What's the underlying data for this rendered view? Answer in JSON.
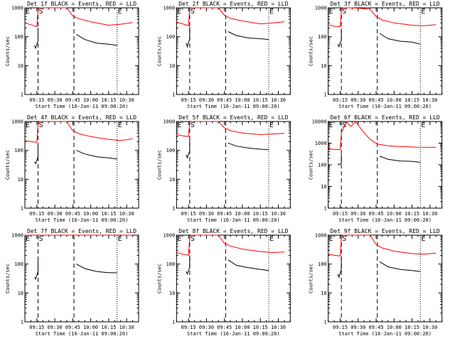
{
  "chart_data": [
    {
      "type": "line",
      "title": "Det 1f BLACK = Events, RED = LLD",
      "xlabel": "Start Time (16-Jan-11 09:00:20)",
      "ylabel": "Counts/sec",
      "xlim": [
        "09:05",
        "10:40"
      ],
      "xticks": [
        "09:15",
        "09:30",
        "09:45",
        "10:00",
        "10:15",
        "10:30"
      ],
      "ylim": [
        1,
        1000
      ],
      "yscale": "log",
      "yticks": [
        "1",
        "10",
        "100",
        "1000"
      ],
      "grid": false,
      "markers": [
        {
          "label": "E",
          "time": "09:05"
        },
        {
          "label": "S",
          "time": "09:16"
        },
        {
          "label": "E",
          "time": "10:22"
        }
      ],
      "vlines": [
        {
          "time": "09:16",
          "style": "dashed"
        },
        {
          "time": "09:46",
          "style": "dashed"
        },
        {
          "time": "10:22",
          "style": "dotted"
        }
      ],
      "series": [
        {
          "color": "#ff0000",
          "x": [
            "09:05",
            "09:10",
            "09:15",
            "09:16",
            "09:17",
            "09:25",
            "09:40",
            "09:45",
            "09:50",
            "10:00",
            "10:15",
            "10:25",
            "10:35"
          ],
          "y": [
            300,
            260,
            220,
            850,
            1000,
            1000,
            1000,
            520,
            420,
            330,
            250,
            270,
            310
          ]
        },
        {
          "color": "#000000",
          "x": [
            "09:13",
            "09:14",
            "09:15",
            "09:16",
            "09:16",
            "09:47",
            "09:48",
            "09:55",
            "10:05",
            "10:15",
            "10:22"
          ],
          "y": [
            50,
            40,
            55,
            70,
            200,
            null,
            120,
            80,
            60,
            55,
            50
          ]
        }
      ]
    },
    {
      "type": "line",
      "title": "Det 2f BLACK = Events, RED = LLD",
      "xlabel": "Start Time (16-Jan-11 09:00:20)",
      "ylabel": "Counts/sec",
      "xlim": [
        "09:05",
        "10:40"
      ],
      "xticks": [
        "09:15",
        "09:30",
        "09:45",
        "10:00",
        "10:15",
        "10:30"
      ],
      "ylim": [
        1,
        1000
      ],
      "yscale": "log",
      "yticks": [
        "1",
        "10",
        "100",
        "1000"
      ],
      "grid": false,
      "markers": [
        {
          "label": "E",
          "time": "09:05"
        },
        {
          "label": "S",
          "time": "09:16"
        },
        {
          "label": "E",
          "time": "10:22"
        }
      ],
      "vlines": [
        {
          "time": "09:16",
          "style": "dashed"
        },
        {
          "time": "09:46",
          "style": "dashed"
        },
        {
          "time": "10:22",
          "style": "dotted"
        }
      ],
      "series": [
        {
          "color": "#ff0000",
          "x": [
            "09:05",
            "09:10",
            "09:15",
            "09:16",
            "09:17",
            "09:25",
            "09:40",
            "09:45",
            "09:50",
            "10:00",
            "10:15",
            "10:25",
            "10:35"
          ],
          "y": [
            320,
            280,
            240,
            900,
            1000,
            1000,
            1000,
            550,
            430,
            350,
            280,
            300,
            330
          ]
        },
        {
          "color": "#000000",
          "x": [
            "09:13",
            "09:14",
            "09:15",
            "09:16",
            "09:16",
            "09:47",
            "09:48",
            "09:55",
            "10:05",
            "10:15",
            "10:22"
          ],
          "y": [
            60,
            45,
            65,
            80,
            220,
            null,
            150,
            110,
            90,
            85,
            80
          ]
        }
      ]
    },
    {
      "type": "line",
      "title": "Det 3f BLACK = Events, RED = LLD",
      "xlabel": "Start Time (16-Jan-11 09:00:20)",
      "ylabel": "Counts/sec",
      "xlim": [
        "09:05",
        "10:40"
      ],
      "xticks": [
        "09:15",
        "09:30",
        "09:45",
        "10:00",
        "10:15",
        "10:30"
      ],
      "ylim": [
        1,
        1000
      ],
      "yscale": "log",
      "yticks": [
        "1",
        "10",
        "100",
        "1000"
      ],
      "grid": false,
      "markers": [
        {
          "label": "E",
          "time": "09:05"
        },
        {
          "label": "S",
          "time": "09:16"
        },
        {
          "label": "E",
          "time": "10:22"
        }
      ],
      "vlines": [
        {
          "time": "09:16",
          "style": "dashed"
        },
        {
          "time": "09:46",
          "style": "dashed"
        },
        {
          "time": "10:22",
          "style": "dotted"
        }
      ],
      "series": [
        {
          "color": "#ff0000",
          "x": [
            "09:05",
            "09:10",
            "09:15",
            "09:16",
            "09:17",
            "09:25",
            "09:40",
            "09:45",
            "09:50",
            "10:00",
            "10:15",
            "10:25",
            "10:35"
          ],
          "y": [
            260,
            230,
            220,
            800,
            1000,
            1000,
            900,
            500,
            380,
            300,
            250,
            240,
            260
          ]
        },
        {
          "color": "#000000",
          "x": [
            "09:13",
            "09:14",
            "09:15",
            "09:16",
            "09:16",
            "09:47",
            "09:48",
            "09:55",
            "10:05",
            "10:15",
            "10:22"
          ],
          "y": [
            55,
            45,
            60,
            75,
            190,
            null,
            130,
            85,
            70,
            65,
            55
          ]
        }
      ]
    },
    {
      "type": "line",
      "title": "Det 4f BLACK = Events, RED = LLD",
      "xlabel": "Start Time (16-Jan-11 09:00:20)",
      "ylabel": "Counts/sec",
      "xlim": [
        "09:05",
        "10:40"
      ],
      "xticks": [
        "09:15",
        "09:30",
        "09:45",
        "10:00",
        "10:15",
        "10:30"
      ],
      "ylim": [
        1,
        1000
      ],
      "yscale": "log",
      "yticks": [
        "1",
        "10",
        "100",
        "1000"
      ],
      "grid": false,
      "markers": [
        {
          "label": "E",
          "time": "09:05"
        },
        {
          "label": "S",
          "time": "09:16"
        },
        {
          "label": "E",
          "time": "10:22"
        }
      ],
      "vlines": [
        {
          "time": "09:16",
          "style": "dashed"
        },
        {
          "time": "09:46",
          "style": "dashed"
        },
        {
          "time": "10:22",
          "style": "dotted"
        }
      ],
      "series": [
        {
          "color": "#ff0000",
          "x": [
            "09:05",
            "09:10",
            "09:15",
            "09:16",
            "09:17",
            "09:25",
            "09:40",
            "09:45",
            "09:50",
            "10:00",
            "10:15",
            "10:25",
            "10:35"
          ],
          "y": [
            220,
            200,
            190,
            800,
            1000,
            1000,
            1000,
            480,
            380,
            300,
            240,
            220,
            250
          ]
        },
        {
          "color": "#000000",
          "x": [
            "09:13",
            "09:14",
            "09:15",
            "09:16",
            "09:16",
            "09:47",
            "09:48",
            "09:55",
            "10:05",
            "10:15",
            "10:22"
          ],
          "y": [
            40,
            35,
            45,
            60,
            180,
            null,
            100,
            75,
            60,
            55,
            50
          ]
        }
      ]
    },
    {
      "type": "line",
      "title": "Det 5f BLACK = Events, RED = LLD",
      "xlabel": "Start Time (16-Jan-11 09:00:20)",
      "ylabel": "Counts/sec",
      "xlim": [
        "09:05",
        "10:40"
      ],
      "xticks": [
        "09:15",
        "09:30",
        "09:45",
        "10:00",
        "10:15",
        "10:30"
      ],
      "ylim": [
        1,
        1000
      ],
      "yscale": "log",
      "yticks": [
        "1",
        "10",
        "100",
        "1000"
      ],
      "grid": false,
      "markers": [
        {
          "label": "E",
          "time": "09:05"
        },
        {
          "label": "S",
          "time": "09:16"
        },
        {
          "label": "E",
          "time": "10:22"
        }
      ],
      "vlines": [
        {
          "time": "09:16",
          "style": "dashed"
        },
        {
          "time": "09:46",
          "style": "dashed"
        },
        {
          "time": "10:22",
          "style": "dotted"
        }
      ],
      "series": [
        {
          "color": "#ff0000",
          "x": [
            "09:05",
            "09:10",
            "09:15",
            "09:16",
            "09:17",
            "09:25",
            "09:40",
            "09:45",
            "09:50",
            "10:00",
            "10:15",
            "10:25",
            "10:35"
          ],
          "y": [
            350,
            320,
            300,
            950,
            1000,
            1000,
            1000,
            600,
            480,
            400,
            350,
            370,
            390
          ]
        },
        {
          "color": "#000000",
          "x": [
            "09:13",
            "09:14",
            "09:15",
            "09:16",
            "09:16",
            "09:47",
            "09:48",
            "09:55",
            "10:05",
            "10:15",
            "10:22"
          ],
          "y": [
            70,
            55,
            75,
            90,
            250,
            null,
            180,
            140,
            120,
            110,
            105
          ]
        }
      ]
    },
    {
      "type": "line",
      "title": "Det 6f BLACK = Events, RED = LLD",
      "xlabel": "Start Time (16-Jan-11 09:00:20)",
      "ylabel": "Counts/sec",
      "xlim": [
        "09:05",
        "10:40"
      ],
      "xticks": [
        "09:15",
        "09:30",
        "09:45",
        "10:00",
        "10:15",
        "10:30"
      ],
      "ylim": [
        1,
        10000
      ],
      "yscale": "log",
      "yticks": [
        "1",
        "10",
        "100",
        "1000",
        "10000"
      ],
      "grid": false,
      "markers": [
        {
          "label": "E",
          "time": "09:05"
        },
        {
          "label": "S",
          "time": "09:16"
        },
        {
          "label": "E",
          "time": "10:22"
        }
      ],
      "vlines": [
        {
          "time": "09:16",
          "style": "dashed"
        },
        {
          "time": "09:46",
          "style": "dashed"
        },
        {
          "time": "10:22",
          "style": "dotted"
        }
      ],
      "series": [
        {
          "color": "#ff0000",
          "x": [
            "09:05",
            "09:10",
            "09:15",
            "09:16",
            "09:20",
            "09:24",
            "09:28",
            "09:34",
            "09:40",
            "09:46",
            "09:55",
            "10:05",
            "10:20",
            "10:35"
          ],
          "y": [
            550,
            520,
            500,
            3000,
            9500,
            6000,
            9800,
            3500,
            1500,
            900,
            750,
            700,
            650,
            640
          ]
        },
        {
          "color": "#000000",
          "x": [
            "09:13",
            "09:14",
            "09:15",
            "09:16",
            "09:16",
            "09:47",
            "09:48",
            "09:55",
            "10:05",
            "10:15",
            "10:22"
          ],
          "y": [
            110,
            100,
            110,
            120,
            300,
            null,
            250,
            180,
            150,
            145,
            130
          ]
        }
      ]
    },
    {
      "type": "line",
      "title": "Det 7f BLACK = Events, RED = LLD",
      "xlabel": "Start Time (16-Jan-11 09:00:20)",
      "ylabel": "Counts/sec",
      "xlim": [
        "09:05",
        "10:40"
      ],
      "xticks": [
        "09:15",
        "09:30",
        "09:45",
        "10:00",
        "10:15",
        "10:30"
      ],
      "ylim": [
        1,
        1000
      ],
      "yscale": "log",
      "yticks": [
        "1",
        "10",
        "100",
        "1000"
      ],
      "grid": false,
      "markers": [
        {
          "label": "E",
          "time": "09:05"
        },
        {
          "label": "S",
          "time": "09:16"
        },
        {
          "label": "E",
          "time": "10:22"
        }
      ],
      "vlines": [
        {
          "time": "09:16",
          "style": "dashed"
        },
        {
          "time": "09:46",
          "style": "dashed"
        },
        {
          "time": "10:22",
          "style": "dotted"
        }
      ],
      "series": [
        {
          "color": "#ff0000",
          "x": [
            "09:05",
            "09:15",
            "09:25",
            "09:35",
            "09:45",
            "09:55",
            "10:05",
            "10:15",
            "10:25",
            "10:35"
          ],
          "y": [
            1000,
            1000,
            1000,
            1000,
            1000,
            1000,
            1000,
            1000,
            1000,
            1000
          ]
        },
        {
          "color": "#000000",
          "x": [
            "09:13",
            "09:14",
            "09:15",
            "09:16",
            "09:16",
            "09:47",
            "09:48",
            "09:55",
            "10:05",
            "10:15",
            "10:22"
          ],
          "y": [
            35,
            30,
            40,
            55,
            170,
            null,
            100,
            70,
            55,
            50,
            50
          ]
        }
      ]
    },
    {
      "type": "line",
      "title": "Det 8f BLACK = Events, RED = LLD",
      "xlabel": "Start Time (16-Jan-11 09:00:20)",
      "ylabel": "Counts/sec",
      "xlim": [
        "09:05",
        "10:40"
      ],
      "xticks": [
        "09:15",
        "09:30",
        "09:45",
        "10:00",
        "10:15",
        "10:30"
      ],
      "ylim": [
        1,
        1000
      ],
      "yscale": "log",
      "yticks": [
        "1",
        "10",
        "100",
        "1000"
      ],
      "grid": false,
      "markers": [
        {
          "label": "E",
          "time": "09:05"
        },
        {
          "label": "S",
          "time": "09:16"
        },
        {
          "label": "E",
          "time": "10:22"
        }
      ],
      "vlines": [
        {
          "time": "09:16",
          "style": "dashed"
        },
        {
          "time": "09:46",
          "style": "dashed"
        },
        {
          "time": "10:22",
          "style": "dotted"
        }
      ],
      "series": [
        {
          "color": "#ff0000",
          "x": [
            "09:05",
            "09:10",
            "09:15",
            "09:16",
            "09:17",
            "09:25",
            "09:40",
            "09:45",
            "09:50",
            "10:00",
            "10:15",
            "10:25",
            "10:35"
          ],
          "y": [
            250,
            220,
            200,
            850,
            1000,
            1000,
            1000,
            520,
            420,
            330,
            270,
            250,
            260
          ]
        },
        {
          "color": "#000000",
          "x": [
            "09:13",
            "09:14",
            "09:15",
            "09:16",
            "09:16",
            "09:47",
            "09:48",
            "09:55",
            "10:05",
            "10:15",
            "10:22"
          ],
          "y": [
            55,
            45,
            60,
            75,
            200,
            null,
            140,
            90,
            75,
            65,
            60
          ]
        }
      ]
    },
    {
      "type": "line",
      "title": "Det 9f BLACK = Events, RED = LLD",
      "xlabel": "Start Time (16-Jan-11 09:00:20)",
      "ylabel": "Counts/sec",
      "xlim": [
        "09:05",
        "10:40"
      ],
      "xticks": [
        "09:15",
        "09:30",
        "09:45",
        "10:00",
        "10:15",
        "10:30"
      ],
      "ylim": [
        1,
        1000
      ],
      "yscale": "log",
      "yticks": [
        "1",
        "10",
        "100",
        "1000"
      ],
      "grid": false,
      "markers": [
        {
          "label": "E",
          "time": "09:05"
        },
        {
          "label": "S",
          "time": "09:16"
        },
        {
          "label": "E",
          "time": "10:22"
        }
      ],
      "vlines": [
        {
          "time": "09:16",
          "style": "dashed"
        },
        {
          "time": "09:46",
          "style": "dashed"
        },
        {
          "time": "10:22",
          "style": "dotted"
        }
      ],
      "series": [
        {
          "color": "#ff0000",
          "x": [
            "09:05",
            "09:10",
            "09:15",
            "09:16",
            "09:17",
            "09:25",
            "09:40",
            "09:45",
            "09:50",
            "10:00",
            "10:15",
            "10:25",
            "10:35"
          ],
          "y": [
            220,
            200,
            190,
            800,
            1000,
            1000,
            1000,
            480,
            360,
            280,
            230,
            220,
            240
          ]
        },
        {
          "color": "#000000",
          "x": [
            "09:13",
            "09:14",
            "09:15",
            "09:16",
            "09:16",
            "09:47",
            "09:48",
            "09:55",
            "10:05",
            "10:15",
            "10:22"
          ],
          "y": [
            45,
            35,
            50,
            65,
            180,
            null,
            120,
            80,
            65,
            60,
            55
          ]
        }
      ]
    }
  ]
}
